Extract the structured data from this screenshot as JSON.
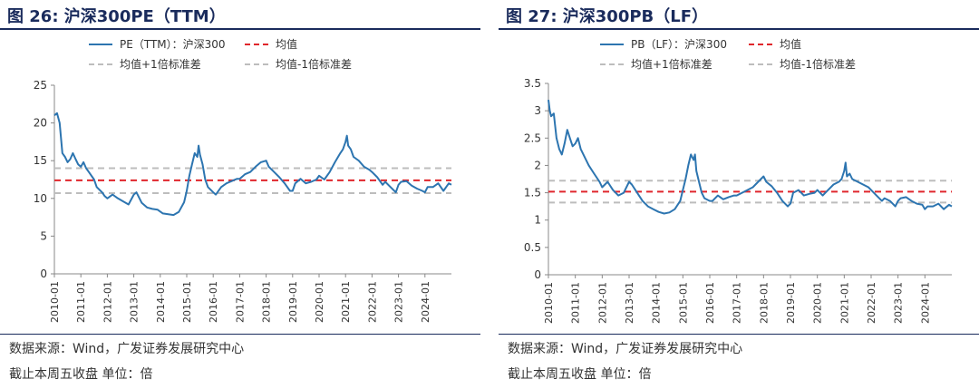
{
  "charts": [
    {
      "title": "图 26:  沪深300PE（TTM）",
      "legend": {
        "series": "PE（TTM）：沪深300",
        "mean": "均值",
        "plus": "均值+1倍标准差",
        "minus": "均值-1倍标准差"
      },
      "footnote_source": "数据来源：Wind，广发证券发展研究中心",
      "footnote_unit": "截止本周五收盘  单位：倍"
    },
    {
      "title": "图 27:  沪深300PB（LF）",
      "legend": {
        "series": "PB（LF）：沪深300",
        "mean": "均值",
        "plus": "均值+1倍标准差",
        "minus": "均值-1倍标准差"
      },
      "footnote_source": "数据来源：Wind，广发证券发展研究中心",
      "footnote_unit": "截止本周五收盘  单位：倍"
    }
  ],
  "colors": {
    "series": "#2d75b0",
    "mean": "#e0262c",
    "band": "#bdbdbd",
    "title": "#1a2b5c"
  },
  "chart_data": [
    {
      "type": "line",
      "title": "沪深300PE（TTM）",
      "x_ticks": [
        "2010-01",
        "2011-01",
        "2012-01",
        "2013-01",
        "2014-01",
        "2015-01",
        "2016-01",
        "2017-01",
        "2018-01",
        "2019-01",
        "2020-01",
        "2021-01",
        "2022-01",
        "2023-01",
        "2024-01"
      ],
      "x_range": [
        2010.0,
        2025.0
      ],
      "y_ticks": [
        0,
        5,
        10,
        15,
        20,
        25
      ],
      "ylim": [
        0,
        25
      ],
      "grid": false,
      "legend_placement": "top",
      "series": [
        {
          "name": "PE（TTM）：沪深300",
          "x": [
            2010.0,
            2010.1,
            2010.2,
            2010.3,
            2010.4,
            2010.5,
            2010.6,
            2010.7,
            2010.8,
            2010.9,
            2011.0,
            2011.1,
            2011.2,
            2011.3,
            2011.5,
            2011.6,
            2011.8,
            2011.9,
            2012.0,
            2012.2,
            2012.4,
            2012.6,
            2012.8,
            2013.0,
            2013.1,
            2013.3,
            2013.5,
            2013.7,
            2013.9,
            2014.1,
            2014.3,
            2014.5,
            2014.7,
            2014.9,
            2015.0,
            2015.1,
            2015.2,
            2015.3,
            2015.4,
            2015.45,
            2015.5,
            2015.6,
            2015.7,
            2015.8,
            2016.0,
            2016.1,
            2016.3,
            2016.5,
            2016.7,
            2016.9,
            2017.0,
            2017.2,
            2017.4,
            2017.6,
            2017.8,
            2018.0,
            2018.1,
            2018.3,
            2018.5,
            2018.7,
            2018.9,
            2019.0,
            2019.1,
            2019.3,
            2019.5,
            2019.7,
            2019.9,
            2020.0,
            2020.2,
            2020.4,
            2020.6,
            2020.8,
            2020.9,
            2021.0,
            2021.05,
            2021.1,
            2021.2,
            2021.3,
            2021.5,
            2021.7,
            2021.9,
            2022.0,
            2022.2,
            2022.4,
            2022.5,
            2022.7,
            2022.9,
            2023.0,
            2023.1,
            2023.3,
            2023.5,
            2023.7,
            2023.9,
            2024.0,
            2024.1,
            2024.3,
            2024.5,
            2024.7,
            2024.9,
            2025.0
          ],
          "y": [
            21.0,
            21.3,
            20.0,
            16.0,
            15.5,
            14.8,
            15.2,
            16.0,
            15.2,
            14.5,
            14.2,
            14.8,
            14.0,
            13.5,
            12.5,
            11.5,
            10.8,
            10.3,
            10.0,
            10.5,
            10.0,
            9.6,
            9.2,
            10.5,
            10.8,
            9.4,
            8.8,
            8.6,
            8.5,
            8.0,
            7.9,
            7.8,
            8.2,
            9.5,
            11.0,
            13.0,
            14.5,
            16.0,
            15.5,
            17.0,
            15.8,
            14.5,
            12.5,
            11.5,
            10.8,
            10.5,
            11.5,
            12.0,
            12.3,
            12.6,
            12.6,
            13.2,
            13.5,
            14.2,
            14.8,
            15.0,
            14.2,
            13.5,
            12.8,
            12.0,
            11.0,
            11.0,
            12.0,
            12.6,
            12.0,
            12.2,
            12.5,
            13.0,
            12.5,
            13.5,
            14.8,
            16.0,
            16.5,
            17.5,
            18.3,
            17.0,
            16.5,
            15.5,
            15.0,
            14.2,
            13.8,
            13.5,
            12.8,
            11.8,
            12.2,
            11.5,
            10.8,
            11.8,
            12.2,
            12.3,
            11.7,
            11.3,
            11.0,
            10.8,
            11.5,
            11.5,
            12.0,
            11.0,
            12.0,
            11.8
          ]
        }
      ],
      "reference_lines": [
        {
          "name": "均值",
          "value": 12.4
        },
        {
          "name": "均值+1倍标准差",
          "value": 14.0
        },
        {
          "name": "均值-1倍标准差",
          "value": 10.7
        }
      ]
    },
    {
      "type": "line",
      "title": "沪深300PB（LF）",
      "x_ticks": [
        "2010-01",
        "2011-01",
        "2012-01",
        "2013-01",
        "2014-01",
        "2015-01",
        "2016-01",
        "2017-01",
        "2018-01",
        "2019-01",
        "2020-01",
        "2021-01",
        "2022-01",
        "2023-01",
        "2024-01"
      ],
      "x_range": [
        2010.0,
        2025.0
      ],
      "y_ticks": [
        0,
        0.5,
        1,
        1.5,
        2,
        2.5,
        3,
        3.5
      ],
      "ylim": [
        0,
        3.5
      ],
      "grid": false,
      "legend_placement": "top",
      "series": [
        {
          "name": "PB（LF）：沪深300",
          "x": [
            2010.0,
            2010.05,
            2010.1,
            2010.2,
            2010.3,
            2010.4,
            2010.5,
            2010.6,
            2010.7,
            2010.8,
            2010.9,
            2011.0,
            2011.1,
            2011.2,
            2011.3,
            2011.5,
            2011.7,
            2011.9,
            2012.0,
            2012.2,
            2012.4,
            2012.6,
            2012.8,
            2013.0,
            2013.1,
            2013.3,
            2013.5,
            2013.7,
            2013.9,
            2014.1,
            2014.3,
            2014.5,
            2014.7,
            2014.9,
            2015.0,
            2015.1,
            2015.2,
            2015.3,
            2015.4,
            2015.45,
            2015.5,
            2015.6,
            2015.7,
            2015.8,
            2016.0,
            2016.1,
            2016.3,
            2016.5,
            2016.7,
            2016.9,
            2017.0,
            2017.2,
            2017.4,
            2017.6,
            2017.8,
            2018.0,
            2018.1,
            2018.3,
            2018.5,
            2018.7,
            2018.9,
            2019.0,
            2019.1,
            2019.3,
            2019.5,
            2019.7,
            2019.9,
            2020.0,
            2020.2,
            2020.4,
            2020.6,
            2020.8,
            2020.9,
            2021.0,
            2021.05,
            2021.1,
            2021.2,
            2021.3,
            2021.5,
            2021.7,
            2021.9,
            2022.0,
            2022.2,
            2022.4,
            2022.5,
            2022.7,
            2022.9,
            2023.0,
            2023.1,
            2023.3,
            2023.5,
            2023.7,
            2023.9,
            2024.0,
            2024.1,
            2024.3,
            2024.5,
            2024.7,
            2024.9,
            2025.0
          ],
          "y": [
            3.2,
            3.0,
            2.9,
            2.95,
            2.5,
            2.3,
            2.2,
            2.4,
            2.65,
            2.5,
            2.35,
            2.4,
            2.5,
            2.3,
            2.2,
            2.0,
            1.85,
            1.7,
            1.6,
            1.7,
            1.55,
            1.45,
            1.5,
            1.7,
            1.65,
            1.5,
            1.35,
            1.25,
            1.2,
            1.15,
            1.12,
            1.14,
            1.2,
            1.35,
            1.55,
            1.75,
            2.0,
            2.2,
            2.1,
            2.2,
            1.9,
            1.7,
            1.5,
            1.4,
            1.35,
            1.35,
            1.45,
            1.38,
            1.42,
            1.45,
            1.45,
            1.5,
            1.55,
            1.6,
            1.7,
            1.8,
            1.7,
            1.62,
            1.5,
            1.35,
            1.25,
            1.3,
            1.5,
            1.55,
            1.45,
            1.48,
            1.5,
            1.55,
            1.45,
            1.55,
            1.65,
            1.7,
            1.75,
            1.9,
            2.05,
            1.8,
            1.85,
            1.75,
            1.7,
            1.65,
            1.6,
            1.55,
            1.45,
            1.35,
            1.4,
            1.35,
            1.25,
            1.35,
            1.4,
            1.42,
            1.35,
            1.3,
            1.28,
            1.2,
            1.25,
            1.25,
            1.3,
            1.2,
            1.28,
            1.25
          ]
        }
      ],
      "reference_lines": [
        {
          "name": "均值",
          "value": 1.52
        },
        {
          "name": "均值+1倍标准差",
          "value": 1.72
        },
        {
          "name": "均值-1倍标准差",
          "value": 1.32
        }
      ]
    }
  ]
}
